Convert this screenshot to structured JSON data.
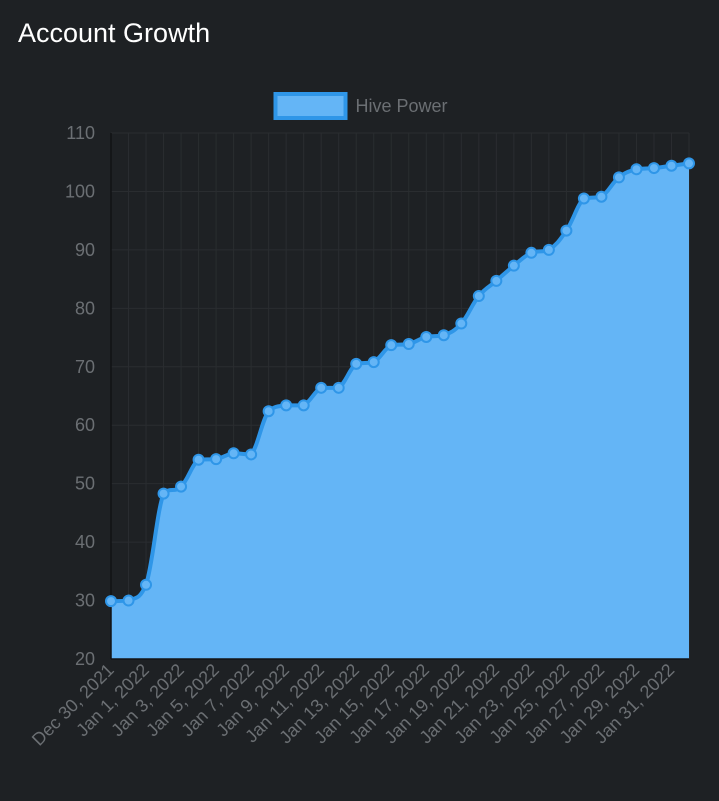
{
  "title": "Account Growth",
  "colors": {
    "background": "#1e2124",
    "fill": "#64b5f6",
    "line": "#2f96e8",
    "grid": "#2a2d30",
    "text": "#6b6f73"
  },
  "chart_data": {
    "type": "area",
    "title": "Account Growth",
    "xlabel": "",
    "ylabel": "",
    "ylim": [
      20,
      110
    ],
    "yticks": [
      20,
      30,
      40,
      50,
      60,
      70,
      80,
      90,
      100,
      110
    ],
    "grid": true,
    "legend_position": "top-center",
    "x_tick_labels": [
      "Dec 30, 2021",
      "Jan 1, 2022",
      "Jan 3, 2022",
      "Jan 5, 2022",
      "Jan 7, 2022",
      "Jan 9, 2022",
      "Jan 11, 2022",
      "Jan 13, 2022",
      "Jan 15, 2022",
      "Jan 17, 2022",
      "Jan 19, 2022",
      "Jan 21, 2022",
      "Jan 23, 2022",
      "Jan 25, 2022",
      "Jan 27, 2022",
      "Jan 29, 2022",
      "Jan 31, 2022"
    ],
    "x": [
      "2021-12-30",
      "2021-12-31",
      "2022-01-01",
      "2022-01-02",
      "2022-01-03",
      "2022-01-04",
      "2022-01-05",
      "2022-01-06",
      "2022-01-07",
      "2022-01-08",
      "2022-01-09",
      "2022-01-10",
      "2022-01-11",
      "2022-01-12",
      "2022-01-13",
      "2022-01-14",
      "2022-01-15",
      "2022-01-16",
      "2022-01-17",
      "2022-01-18",
      "2022-01-19",
      "2022-01-20",
      "2022-01-21",
      "2022-01-22",
      "2022-01-23",
      "2022-01-24",
      "2022-01-25",
      "2022-01-26",
      "2022-01-27",
      "2022-01-28",
      "2022-01-29",
      "2022-01-30",
      "2022-01-31",
      "2022-02-01"
    ],
    "series": [
      {
        "name": "Hive Power",
        "values": [
          29.9,
          30.0,
          32.7,
          48.3,
          49.5,
          54.1,
          54.2,
          55.2,
          55.0,
          62.4,
          63.4,
          63.4,
          66.4,
          66.4,
          70.5,
          70.8,
          73.7,
          73.9,
          75.1,
          75.4,
          77.4,
          82.1,
          84.7,
          87.3,
          89.5,
          90.0,
          93.3,
          98.8,
          99.1,
          102.4,
          103.8,
          104.0,
          104.4,
          104.8
        ]
      }
    ]
  }
}
